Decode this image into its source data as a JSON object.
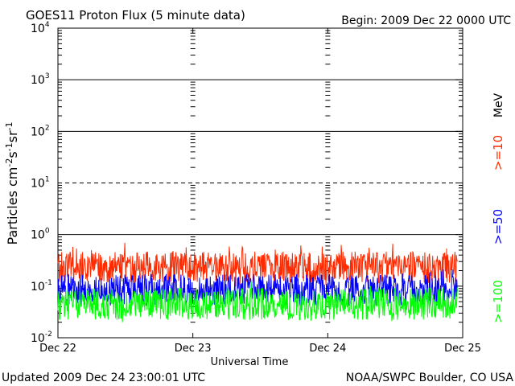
{
  "chart_data": {
    "type": "line",
    "title": "GOES11 Proton Flux (5 minute data)",
    "begin_label": "Begin: 2009 Dec 22 0000 UTC",
    "xlabel": "Universal Time",
    "ylabel": {
      "base": "Particles cm",
      "e1": "-2",
      "s1": "s",
      "e2": "-1",
      "s2": "sr",
      "e3": "-1"
    },
    "y_scale": "log",
    "ylim": [
      0.01,
      10000
    ],
    "y_ticks": [
      {
        "base": "10",
        "exp": "-2"
      },
      {
        "base": "10",
        "exp": "-1"
      },
      {
        "base": "10",
        "exp": "0"
      },
      {
        "base": "10",
        "exp": "1"
      },
      {
        "base": "10",
        "exp": "2"
      },
      {
        "base": "10",
        "exp": "3"
      },
      {
        "base": "10",
        "exp": "4"
      }
    ],
    "x_ticks": [
      "Dec 22",
      "Dec 23",
      "Dec 24",
      "Dec 25"
    ],
    "xlim_days": [
      0,
      3
    ],
    "threshold_lines": [
      {
        "value": 1,
        "style": "solid"
      },
      {
        "value": 10,
        "style": "dashed"
      },
      {
        "value": 100,
        "style": "solid"
      },
      {
        "value": 1000,
        "style": "solid"
      }
    ],
    "unit_label": "MeV",
    "series": [
      {
        "name": ">=10",
        "color": "#ff2a00",
        "level": 0.23,
        "spread": 0.14,
        "x_end_days": 2.96
      },
      {
        "name": ">=50",
        "color": "#0000ff",
        "level": 0.085,
        "spread": 0.14,
        "x_end_days": 2.96
      },
      {
        "name": ">=100",
        "color": "#00ff00",
        "level": 0.045,
        "spread": 0.14,
        "x_end_days": 2.96
      }
    ],
    "updated_label": "Updated 2009 Dec 24 23:00:01 UTC",
    "source_label": "NOAA/SWPC Boulder, CO USA"
  }
}
